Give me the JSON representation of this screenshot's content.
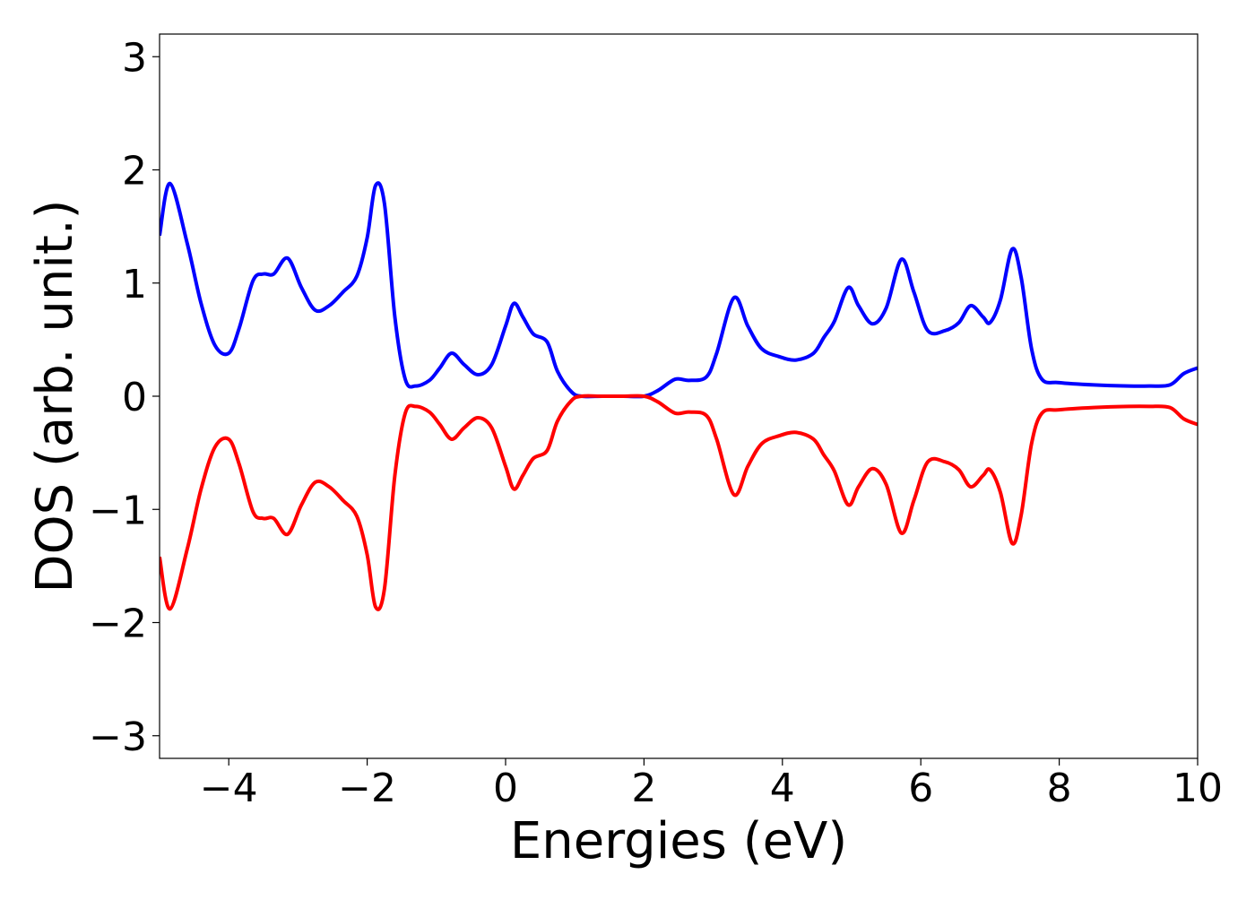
{
  "chart_data": {
    "type": "line",
    "title": "",
    "xlabel": "Energies (eV)",
    "ylabel": "DOS (arb. unit.)",
    "xlim": [
      -5,
      10
    ],
    "ylim": [
      -3.2,
      3.2
    ],
    "grid": false,
    "legend": "none",
    "xticks": [
      -4,
      -2,
      0,
      2,
      4,
      6,
      8,
      10
    ],
    "xtick_labels": [
      "−4",
      "−2",
      "0",
      "2",
      "4",
      "6",
      "8",
      "10"
    ],
    "yticks": [
      -3,
      -2,
      -1,
      0,
      1,
      2,
      3
    ],
    "ytick_labels": [
      "−3",
      "−2",
      "−1",
      "0",
      "1",
      "2",
      "3"
    ],
    "series": [
      {
        "color": "#0000ff",
        "x": [
          -5.0,
          -4.85,
          -4.6,
          -4.4,
          -4.2,
          -4.0,
          -3.85,
          -3.65,
          -3.5,
          -3.35,
          -3.15,
          -2.95,
          -2.75,
          -2.55,
          -2.35,
          -2.15,
          -2.0,
          -1.88,
          -1.75,
          -1.6,
          -1.45,
          -1.3,
          -1.1,
          -0.95,
          -0.78,
          -0.6,
          -0.4,
          -0.2,
          0.0,
          0.12,
          0.25,
          0.4,
          0.6,
          0.75,
          0.95,
          1.1,
          1.4,
          1.7,
          2.0,
          2.2,
          2.45,
          2.65,
          2.9,
          3.05,
          3.3,
          3.5,
          3.7,
          3.95,
          4.2,
          4.45,
          4.6,
          4.75,
          4.95,
          5.1,
          5.3,
          5.5,
          5.72,
          5.9,
          6.1,
          6.35,
          6.55,
          6.72,
          6.9,
          7.0,
          7.15,
          7.32,
          7.45,
          7.6,
          7.75,
          8.0,
          8.5,
          9.0,
          9.3,
          9.6,
          9.8,
          10.0
        ],
        "y": [
          1.42,
          1.88,
          1.35,
          0.82,
          0.45,
          0.38,
          0.6,
          1.02,
          1.08,
          1.08,
          1.22,
          0.96,
          0.76,
          0.8,
          0.92,
          1.06,
          1.4,
          1.86,
          1.7,
          0.7,
          0.15,
          0.09,
          0.14,
          0.25,
          0.38,
          0.28,
          0.19,
          0.28,
          0.62,
          0.82,
          0.7,
          0.55,
          0.48,
          0.22,
          0.04,
          0.0,
          0.0,
          0.0,
          0.0,
          0.05,
          0.15,
          0.14,
          0.17,
          0.38,
          0.87,
          0.62,
          0.42,
          0.35,
          0.32,
          0.38,
          0.52,
          0.66,
          0.96,
          0.8,
          0.64,
          0.78,
          1.21,
          0.92,
          0.58,
          0.58,
          0.65,
          0.8,
          0.7,
          0.65,
          0.85,
          1.3,
          1.05,
          0.42,
          0.15,
          0.12,
          0.1,
          0.09,
          0.09,
          0.1,
          0.2,
          0.25
        ]
      },
      {
        "color": "#ff0000",
        "x": [
          -5.0,
          -4.85,
          -4.6,
          -4.4,
          -4.2,
          -4.0,
          -3.85,
          -3.65,
          -3.5,
          -3.35,
          -3.15,
          -2.95,
          -2.75,
          -2.55,
          -2.35,
          -2.15,
          -2.0,
          -1.88,
          -1.75,
          -1.6,
          -1.45,
          -1.3,
          -1.1,
          -0.95,
          -0.78,
          -0.6,
          -0.4,
          -0.2,
          0.0,
          0.12,
          0.25,
          0.4,
          0.6,
          0.75,
          0.95,
          1.1,
          1.4,
          1.7,
          2.0,
          2.2,
          2.45,
          2.65,
          2.9,
          3.05,
          3.3,
          3.5,
          3.7,
          3.95,
          4.2,
          4.45,
          4.6,
          4.75,
          4.95,
          5.1,
          5.3,
          5.5,
          5.72,
          5.9,
          6.1,
          6.35,
          6.55,
          6.72,
          6.9,
          7.0,
          7.15,
          7.32,
          7.45,
          7.6,
          7.75,
          8.0,
          8.5,
          9.0,
          9.3,
          9.6,
          9.8,
          10.0
        ],
        "y": [
          -1.42,
          -1.88,
          -1.35,
          -0.82,
          -0.45,
          -0.38,
          -0.6,
          -1.02,
          -1.08,
          -1.08,
          -1.22,
          -0.96,
          -0.76,
          -0.8,
          -0.92,
          -1.06,
          -1.4,
          -1.86,
          -1.7,
          -0.7,
          -0.15,
          -0.09,
          -0.14,
          -0.25,
          -0.38,
          -0.28,
          -0.19,
          -0.28,
          -0.62,
          -0.82,
          -0.7,
          -0.55,
          -0.48,
          -0.22,
          -0.04,
          0.0,
          0.0,
          0.0,
          0.0,
          -0.05,
          -0.15,
          -0.14,
          -0.17,
          -0.38,
          -0.87,
          -0.62,
          -0.42,
          -0.35,
          -0.32,
          -0.38,
          -0.52,
          -0.66,
          -0.96,
          -0.8,
          -0.64,
          -0.78,
          -1.21,
          -0.92,
          -0.58,
          -0.58,
          -0.65,
          -0.8,
          -0.7,
          -0.65,
          -0.85,
          -1.3,
          -1.05,
          -0.42,
          -0.15,
          -0.12,
          -0.1,
          -0.09,
          -0.09,
          -0.1,
          -0.2,
          -0.25
        ]
      }
    ]
  }
}
